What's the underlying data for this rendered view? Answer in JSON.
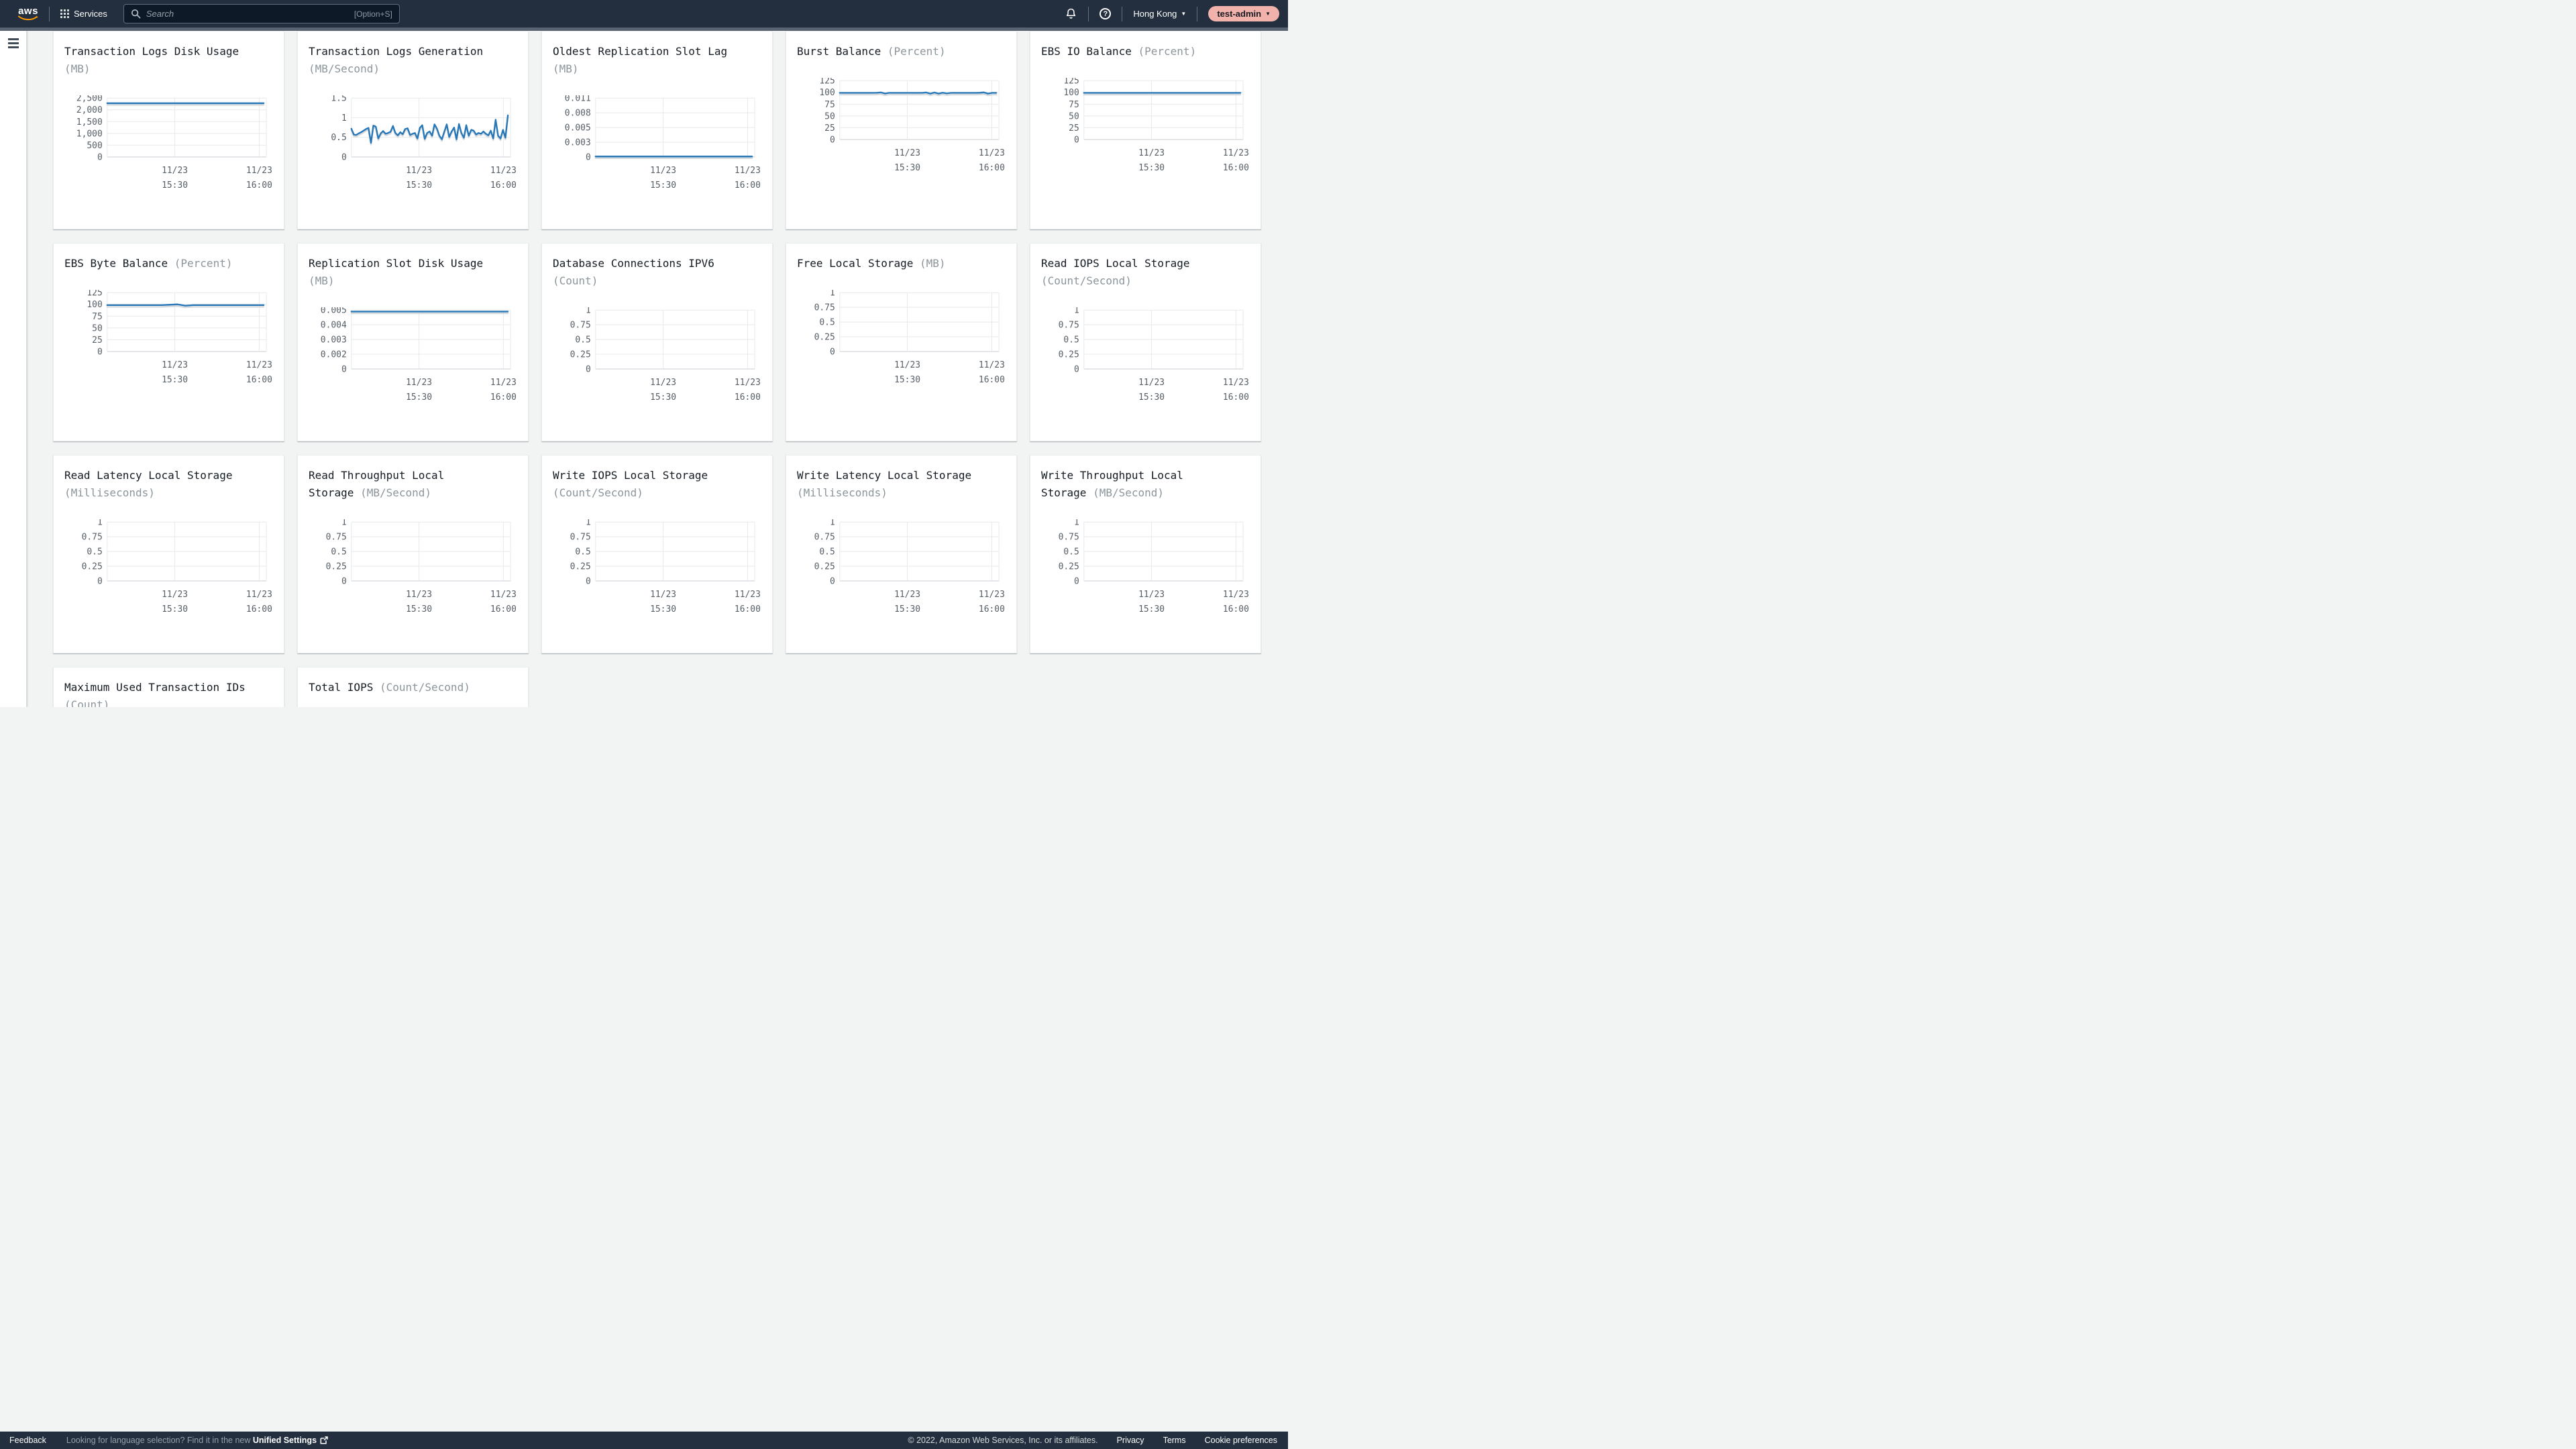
{
  "header": {
    "logo_label": "aws",
    "services_label": "Services",
    "search_placeholder": "Search",
    "search_shortcut": "[Option+S]",
    "region": "Hong Kong",
    "region_caret": "▼",
    "account": "test-admin",
    "account_caret": "▼"
  },
  "footer": {
    "feedback": "Feedback",
    "language_hint": "Looking for language selection? Find it in the new ",
    "unified_settings_label": "Unified Settings",
    "copyright": "© 2022, Amazon Web Services, Inc. or its affiliates.",
    "privacy": "Privacy",
    "terms": "Terms",
    "cookie_prefs": "Cookie preferences"
  },
  "colors": {
    "accent_line": "#2878b8",
    "header_bg": "#232f3e",
    "content_bg": "#f2f3f3",
    "account_pill": "#f2b2ac"
  },
  "chart_data": [
    {
      "type": "line",
      "title": "Transaction Logs Disk Usage",
      "unit": "MB",
      "title_lines": [
        [
          {
            "t": "Transaction Logs Disk Usage",
            "m": 0
          }
        ],
        [
          {
            "t": "(MB)",
            "m": 1
          }
        ]
      ],
      "y_ticks": [
        "2,500",
        "2,000",
        "1,500",
        "1,000",
        "500",
        "0"
      ],
      "x_ticks": [
        [
          "11/23",
          "15:30"
        ],
        [
          "11/23",
          "16:00"
        ]
      ],
      "values": [
        2280,
        2280
      ]
    },
    {
      "type": "line",
      "title": "Transaction Logs Generation",
      "unit": "MB/Second",
      "title_lines": [
        [
          {
            "t": "Transaction Logs Generation",
            "m": 0
          }
        ],
        [
          {
            "t": "(MB/Second)",
            "m": 1
          }
        ]
      ],
      "y_ticks": [
        "1.5",
        "1",
        "0.5",
        "0"
      ],
      "x_ticks": [
        [
          "11/23",
          "15:30"
        ],
        [
          "11/23",
          "16:00"
        ]
      ],
      "values": [
        0.72,
        0.57,
        0.56,
        0.6,
        0.63,
        0.67,
        0.71,
        0.74,
        0.36,
        0.8,
        0.77,
        0.47,
        0.6,
        0.66,
        0.59,
        0.61,
        0.64,
        0.79,
        0.61,
        0.55,
        0.63,
        0.58,
        0.71,
        0.73,
        0.56,
        0.59,
        0.61,
        0.47,
        0.74,
        0.81,
        0.46,
        0.61,
        0.65,
        0.54,
        0.83,
        0.72,
        0.54,
        0.45,
        0.64,
        0.83,
        0.51,
        0.65,
        0.75,
        0.45,
        0.84,
        0.61,
        0.49,
        0.81,
        0.54,
        0.69,
        0.67,
        0.57,
        0.61,
        0.59,
        0.65,
        0.59,
        0.55,
        0.67,
        0.47,
        0.95,
        0.54,
        0.47,
        0.69,
        0.49,
        1.06
      ]
    },
    {
      "type": "line",
      "title": "Oldest Replication Slot Lag",
      "unit": "MB",
      "title_lines": [
        [
          {
            "t": "Oldest Replication Slot Lag",
            "m": 0
          }
        ],
        [
          {
            "t": "(MB)",
            "m": 1
          }
        ]
      ],
      "y_ticks": [
        "0.011",
        "0.008",
        "0.005",
        "0.003",
        "0"
      ],
      "x_ticks": [
        [
          "11/23",
          "15:30"
        ],
        [
          "11/23",
          "16:00"
        ]
      ],
      "values": [
        0.0001,
        0.0001
      ]
    },
    {
      "type": "line",
      "title": "Burst Balance",
      "unit": "Percent",
      "title_lines": [
        [
          {
            "t": "Burst Balance",
            "m": 0
          },
          {
            "t": "(Percent)",
            "m": 1
          }
        ]
      ],
      "y_ticks": [
        "125",
        "100",
        "75",
        "50",
        "25",
        "0"
      ],
      "x_ticks": [
        [
          "11/23",
          "15:30"
        ],
        [
          "11/23",
          "16:00"
        ]
      ],
      "values": [
        99,
        99,
        99,
        99,
        99,
        99,
        99,
        99,
        99,
        99.2,
        100,
        97.6,
        99,
        99,
        99,
        99,
        99,
        99,
        99,
        99,
        99,
        99.8,
        97.5,
        99.8,
        97.5,
        99.5,
        97.8,
        99,
        99,
        99,
        99,
        99,
        99,
        99,
        99.3,
        100,
        97.5,
        99,
        99
      ]
    },
    {
      "type": "line",
      "title": "EBS IO Balance",
      "unit": "Percent",
      "title_lines": [
        [
          {
            "t": "EBS IO Balance",
            "m": 0
          },
          {
            "t": "(Percent)",
            "m": 1
          }
        ]
      ],
      "y_ticks": [
        "125",
        "100",
        "75",
        "50",
        "25",
        "0"
      ],
      "x_ticks": [
        [
          "11/23",
          "15:30"
        ],
        [
          "11/23",
          "16:00"
        ]
      ],
      "values": [
        99,
        99
      ]
    },
    {
      "type": "line",
      "title": "EBS Byte Balance",
      "unit": "Percent",
      "title_lines": [
        [
          {
            "t": "EBS Byte Balance",
            "m": 0
          },
          {
            "t": "(Percent)",
            "m": 1
          }
        ]
      ],
      "y_ticks": [
        "125",
        "100",
        "75",
        "50",
        "25",
        "0"
      ],
      "x_ticks": [
        [
          "11/23",
          "15:30"
        ],
        [
          "11/23",
          "16:00"
        ]
      ],
      "values": [
        98.5,
        98.5,
        98.5,
        98.5,
        98.5,
        98.5,
        98.5,
        98.5,
        99.3,
        100,
        97.3,
        98.5,
        98.5,
        98.5,
        98.5,
        98.5,
        98.5,
        98.5,
        98.5,
        98.5,
        98.5
      ]
    },
    {
      "type": "line",
      "title": "Replication Slot Disk Usage",
      "unit": "MB",
      "title_lines": [
        [
          {
            "t": "Replication Slot Disk Usage",
            "m": 0
          }
        ],
        [
          {
            "t": "(MB)",
            "m": 1
          }
        ]
      ],
      "y_ticks": [
        "0.005",
        "0.004",
        "0.003",
        "0.002",
        "0"
      ],
      "x_ticks": [
        [
          "11/23",
          "15:30"
        ],
        [
          "11/23",
          "16:00"
        ]
      ],
      "values": [
        0.0049,
        0.0049
      ]
    },
    {
      "type": "line",
      "title": "Database Connections IPV6",
      "unit": "Count",
      "title_lines": [
        [
          {
            "t": "Database Connections IPV6",
            "m": 0
          }
        ],
        [
          {
            "t": "(Count)",
            "m": 1
          }
        ]
      ],
      "y_ticks": [
        "1",
        "0.75",
        "0.5",
        "0.25",
        "0"
      ],
      "x_ticks": [
        [
          "11/23",
          "15:30"
        ],
        [
          "11/23",
          "16:00"
        ]
      ],
      "values": []
    },
    {
      "type": "line",
      "title": "Free Local Storage",
      "unit": "MB",
      "title_lines": [
        [
          {
            "t": "Free Local Storage",
            "m": 0
          },
          {
            "t": "(MB)",
            "m": 1
          }
        ]
      ],
      "y_ticks": [
        "1",
        "0.75",
        "0.5",
        "0.25",
        "0"
      ],
      "x_ticks": [
        [
          "11/23",
          "15:30"
        ],
        [
          "11/23",
          "16:00"
        ]
      ],
      "values": []
    },
    {
      "type": "line",
      "title": "Read IOPS Local Storage",
      "unit": "Count/Second",
      "title_lines": [
        [
          {
            "t": "Read IOPS Local Storage",
            "m": 0
          }
        ],
        [
          {
            "t": "(Count/Second)",
            "m": 1
          }
        ]
      ],
      "y_ticks": [
        "1",
        "0.75",
        "0.5",
        "0.25",
        "0"
      ],
      "x_ticks": [
        [
          "11/23",
          "15:30"
        ],
        [
          "11/23",
          "16:00"
        ]
      ],
      "values": []
    },
    {
      "type": "line",
      "title": "Read Latency Local Storage",
      "unit": "Milliseconds",
      "title_lines": [
        [
          {
            "t": "Read Latency Local Storage",
            "m": 0
          }
        ],
        [
          {
            "t": "(Milliseconds)",
            "m": 1
          }
        ]
      ],
      "y_ticks": [
        "1",
        "0.75",
        "0.5",
        "0.25",
        "0"
      ],
      "x_ticks": [
        [
          "11/23",
          "15:30"
        ],
        [
          "11/23",
          "16:00"
        ]
      ],
      "values": []
    },
    {
      "type": "line",
      "title": "Read Throughput Local Storage",
      "unit": "MB/Second",
      "title_lines": [
        [
          {
            "t": "Read Throughput Local",
            "m": 0
          }
        ],
        [
          {
            "t": "Storage",
            "m": 0
          },
          {
            "t": "(MB/Second)",
            "m": 1
          }
        ]
      ],
      "y_ticks": [
        "1",
        "0.75",
        "0.5",
        "0.25",
        "0"
      ],
      "x_ticks": [
        [
          "11/23",
          "15:30"
        ],
        [
          "11/23",
          "16:00"
        ]
      ],
      "values": []
    },
    {
      "type": "line",
      "title": "Write IOPS Local Storage",
      "unit": "Count/Second",
      "title_lines": [
        [
          {
            "t": "Write IOPS Local Storage",
            "m": 0
          }
        ],
        [
          {
            "t": "(Count/Second)",
            "m": 1
          }
        ]
      ],
      "y_ticks": [
        "1",
        "0.75",
        "0.5",
        "0.25",
        "0"
      ],
      "x_ticks": [
        [
          "11/23",
          "15:30"
        ],
        [
          "11/23",
          "16:00"
        ]
      ],
      "values": []
    },
    {
      "type": "line",
      "title": "Write Latency Local Storage",
      "unit": "Milliseconds",
      "title_lines": [
        [
          {
            "t": "Write Latency Local Storage",
            "m": 0
          }
        ],
        [
          {
            "t": "(Milliseconds)",
            "m": 1
          }
        ]
      ],
      "y_ticks": [
        "1",
        "0.75",
        "0.5",
        "0.25",
        "0"
      ],
      "x_ticks": [
        [
          "11/23",
          "15:30"
        ],
        [
          "11/23",
          "16:00"
        ]
      ],
      "values": []
    },
    {
      "type": "line",
      "title": "Write Throughput Local Storage",
      "unit": "MB/Second",
      "title_lines": [
        [
          {
            "t": "Write Throughput Local",
            "m": 0
          }
        ],
        [
          {
            "t": "Storage",
            "m": 0
          },
          {
            "t": "(MB/Second)",
            "m": 1
          }
        ]
      ],
      "y_ticks": [
        "1",
        "0.75",
        "0.5",
        "0.25",
        "0"
      ],
      "x_ticks": [
        [
          "11/23",
          "15:30"
        ],
        [
          "11/23",
          "16:00"
        ]
      ],
      "values": []
    },
    {
      "type": "line",
      "title": "Maximum Used Transaction IDs",
      "unit": "Count",
      "title_lines": [
        [
          {
            "t": "Maximum Used Transaction IDs",
            "m": 0
          }
        ],
        [
          {
            "t": "(Count)",
            "m": 1
          }
        ]
      ],
      "y_ticks": [],
      "x_ticks": [],
      "values": [],
      "partially_visible": true
    },
    {
      "type": "line",
      "title": "Total IOPS",
      "unit": "Count/Second",
      "title_lines": [
        [
          {
            "t": "Total IOPS",
            "m": 0
          },
          {
            "t": "(Count/Second)",
            "m": 1
          }
        ]
      ],
      "y_ticks": [],
      "x_ticks": [],
      "values": [],
      "partially_visible": true
    }
  ]
}
